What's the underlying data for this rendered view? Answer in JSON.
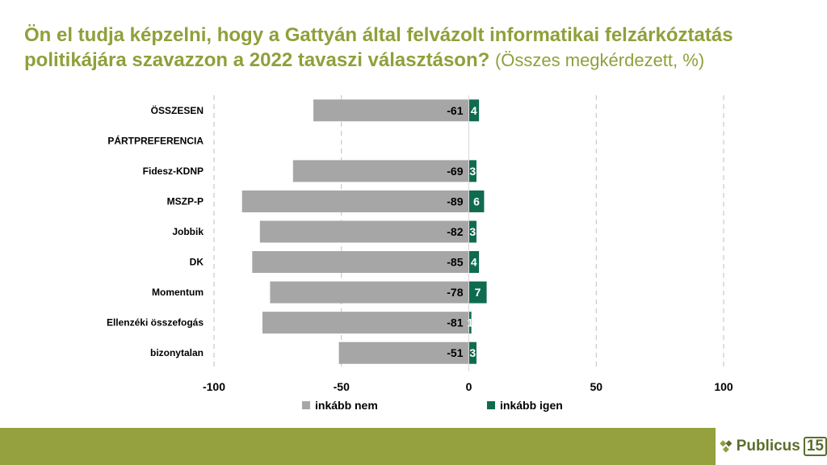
{
  "title": {
    "main": "Ön el tudja képzelni, hogy a Gattyán által felvázolt informatikai felzárkóztatás politikájára szavazzon a 2022 tavaszi választáson?",
    "subtitle": "(Összes megkérdezett, %)"
  },
  "chart_data": {
    "type": "bar",
    "orientation": "horizontal",
    "stacked": "diverging",
    "categories": [
      "ÖSSZESEN",
      "PÁRTPREFERENCIA",
      "Fidesz-KDNP",
      "MSZP-P",
      "Jobbik",
      "DK",
      "Momentum",
      "Ellenzéki összefogás",
      "bizonytalan"
    ],
    "series": [
      {
        "name": "inkább nem",
        "color": "#A6A6A6",
        "values": [
          -61,
          null,
          -69,
          -89,
          -82,
          -85,
          -78,
          -81,
          -51
        ]
      },
      {
        "name": "inkább igen",
        "color": "#0F6B4F",
        "values": [
          4,
          null,
          3,
          6,
          3,
          4,
          7,
          1,
          3
        ]
      }
    ],
    "xlim": [
      -100,
      100
    ],
    "xticks": [
      -100,
      -50,
      0,
      50,
      100
    ],
    "xlabel": "",
    "ylabel": "",
    "grid": "vertical dashed",
    "legend_position": "bottom"
  },
  "brand": {
    "name": "Publicus",
    "number": "15",
    "colors": {
      "title": "#8FA03A",
      "footer": "#95A13E",
      "logo": "#5C6E2C"
    }
  }
}
